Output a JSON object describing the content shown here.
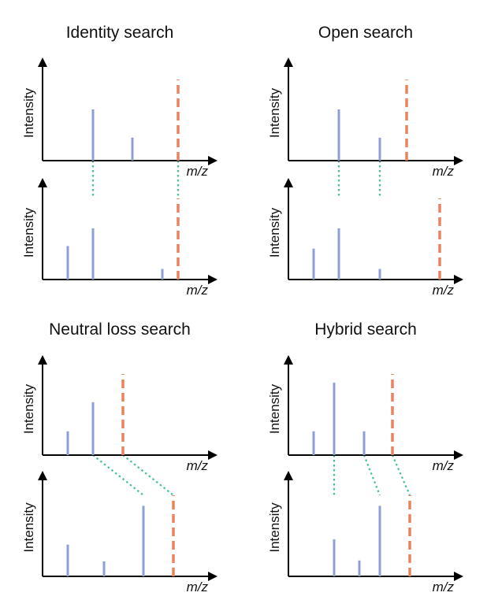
{
  "colors": {
    "peak": "#8d9fd3",
    "precursor": "#e8835e",
    "match_link": "#46be9b",
    "axis": "#000000"
  },
  "axis_labels": {
    "y": "Intensity",
    "x": "m/z"
  },
  "panels": [
    {
      "title": "Identity search",
      "query_peaks": [
        {
          "x": 0.32,
          "h": 0.58
        },
        {
          "x": 0.57,
          "h": 0.26
        }
      ],
      "query_precursor": 0.86,
      "library_peaks": [
        {
          "x": 0.16,
          "h": 0.38
        },
        {
          "x": 0.32,
          "h": 0.58
        },
        {
          "x": 0.76,
          "h": 0.12
        }
      ],
      "library_precursor": 0.86,
      "links": [
        {
          "from": 0.32,
          "to": 0.32
        },
        {
          "from": 0.86,
          "to": 0.86
        }
      ]
    },
    {
      "title": "Open search",
      "query_peaks": [
        {
          "x": 0.32,
          "h": 0.58
        },
        {
          "x": 0.58,
          "h": 0.26
        }
      ],
      "query_precursor": 0.75,
      "library_peaks": [
        {
          "x": 0.16,
          "h": 0.35
        },
        {
          "x": 0.32,
          "h": 0.58
        },
        {
          "x": 0.58,
          "h": 0.12
        }
      ],
      "library_precursor": 0.96,
      "links": [
        {
          "from": 0.32,
          "to": 0.32
        },
        {
          "from": 0.58,
          "to": 0.58
        }
      ]
    },
    {
      "title": "Neutral loss search",
      "query_peaks": [
        {
          "x": 0.16,
          "h": 0.27
        },
        {
          "x": 0.32,
          "h": 0.6
        }
      ],
      "query_precursor": 0.51,
      "library_peaks": [
        {
          "x": 0.16,
          "h": 0.36
        },
        {
          "x": 0.39,
          "h": 0.17
        },
        {
          "x": 0.64,
          "h": 0.8
        }
      ],
      "library_precursor": 0.83,
      "links": [
        {
          "from": 0.32,
          "to": 0.64
        },
        {
          "from": 0.51,
          "to": 0.83
        }
      ]
    },
    {
      "title": "Hybrid search",
      "query_peaks": [
        {
          "x": 0.16,
          "h": 0.27
        },
        {
          "x": 0.29,
          "h": 0.82
        },
        {
          "x": 0.48,
          "h": 0.27
        }
      ],
      "query_precursor": 0.66,
      "library_peaks": [
        {
          "x": 0.29,
          "h": 0.42
        },
        {
          "x": 0.45,
          "h": 0.18
        },
        {
          "x": 0.58,
          "h": 0.8
        }
      ],
      "library_precursor": 0.77,
      "links": [
        {
          "from": 0.29,
          "to": 0.29
        },
        {
          "from": 0.48,
          "to": 0.58
        },
        {
          "from": 0.66,
          "to": 0.77
        }
      ]
    }
  ]
}
